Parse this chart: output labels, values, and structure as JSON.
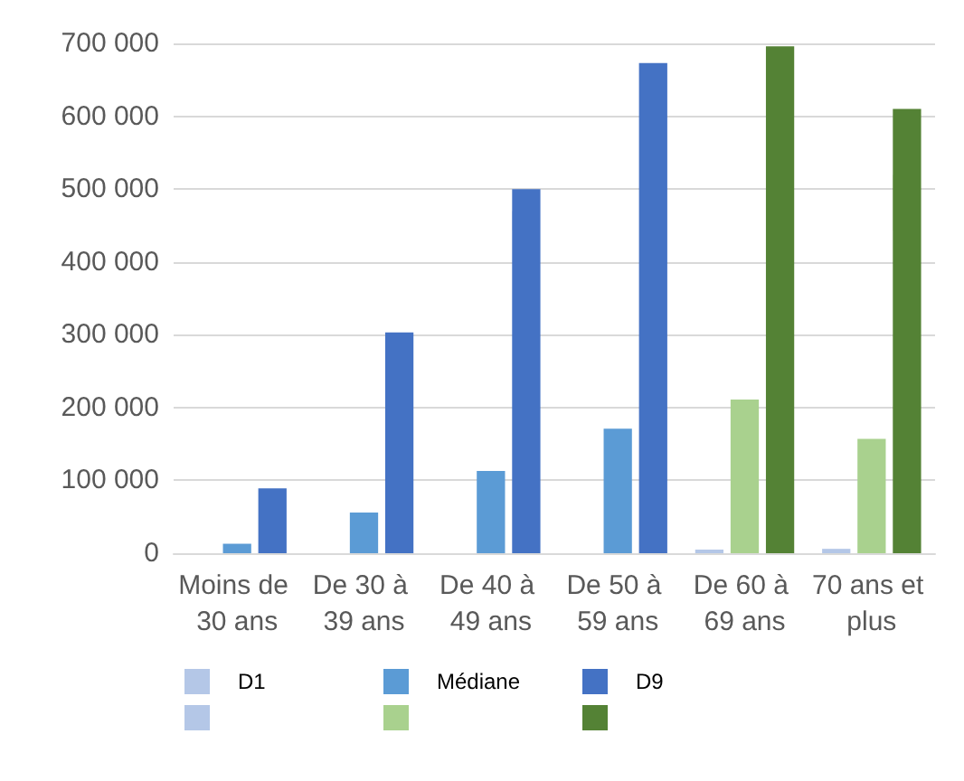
{
  "chart_data": {
    "type": "bar",
    "categories": [
      "Moins de 30 ans",
      "De 30 à 39 ans",
      "De 40 à 49 ans",
      "De 50 à 59 ans",
      "De 60 à 69 ans",
      "70 ans et plus"
    ],
    "series": [
      {
        "name": "D1",
        "color": "#b4c7e7",
        "colors": [
          "#c9d3e3",
          "#c9d3e3",
          "#c9d3e3",
          "#c9d3e3",
          "#b4c7e7",
          "#b4c7e7"
        ],
        "values": [
          null,
          null,
          null,
          null,
          5000,
          6000
        ]
      },
      {
        "name": "Médiane",
        "color": "#5b9bd5",
        "colors": [
          "#5b9bd5",
          "#5b9bd5",
          "#5b9bd5",
          "#5b9bd5",
          "#a9d18e",
          "#a9d18e"
        ],
        "values": [
          13000,
          56000,
          113000,
          171000,
          211000,
          157000
        ]
      },
      {
        "name": "D9",
        "color": "#4472c4",
        "colors": [
          "#4472c4",
          "#4472c4",
          "#4472c4",
          "#4472c4",
          "#548235",
          "#548235"
        ],
        "values": [
          89000,
          303000,
          500000,
          673000,
          696000,
          610000
        ]
      }
    ],
    "ylim": [
      0,
      700000
    ],
    "yticks": [
      {
        "value": 0,
        "label": "0"
      },
      {
        "value": 100000,
        "label": "100 000"
      },
      {
        "value": 200000,
        "label": "200 000"
      },
      {
        "value": 300000,
        "label": "300 000"
      },
      {
        "value": 400000,
        "label": "400 000"
      },
      {
        "value": 500000,
        "label": "500 000"
      },
      {
        "value": 600000,
        "label": "600 000"
      },
      {
        "value": 700000,
        "label": "700 000"
      }
    ],
    "grid": "y",
    "legend": "bottom"
  }
}
